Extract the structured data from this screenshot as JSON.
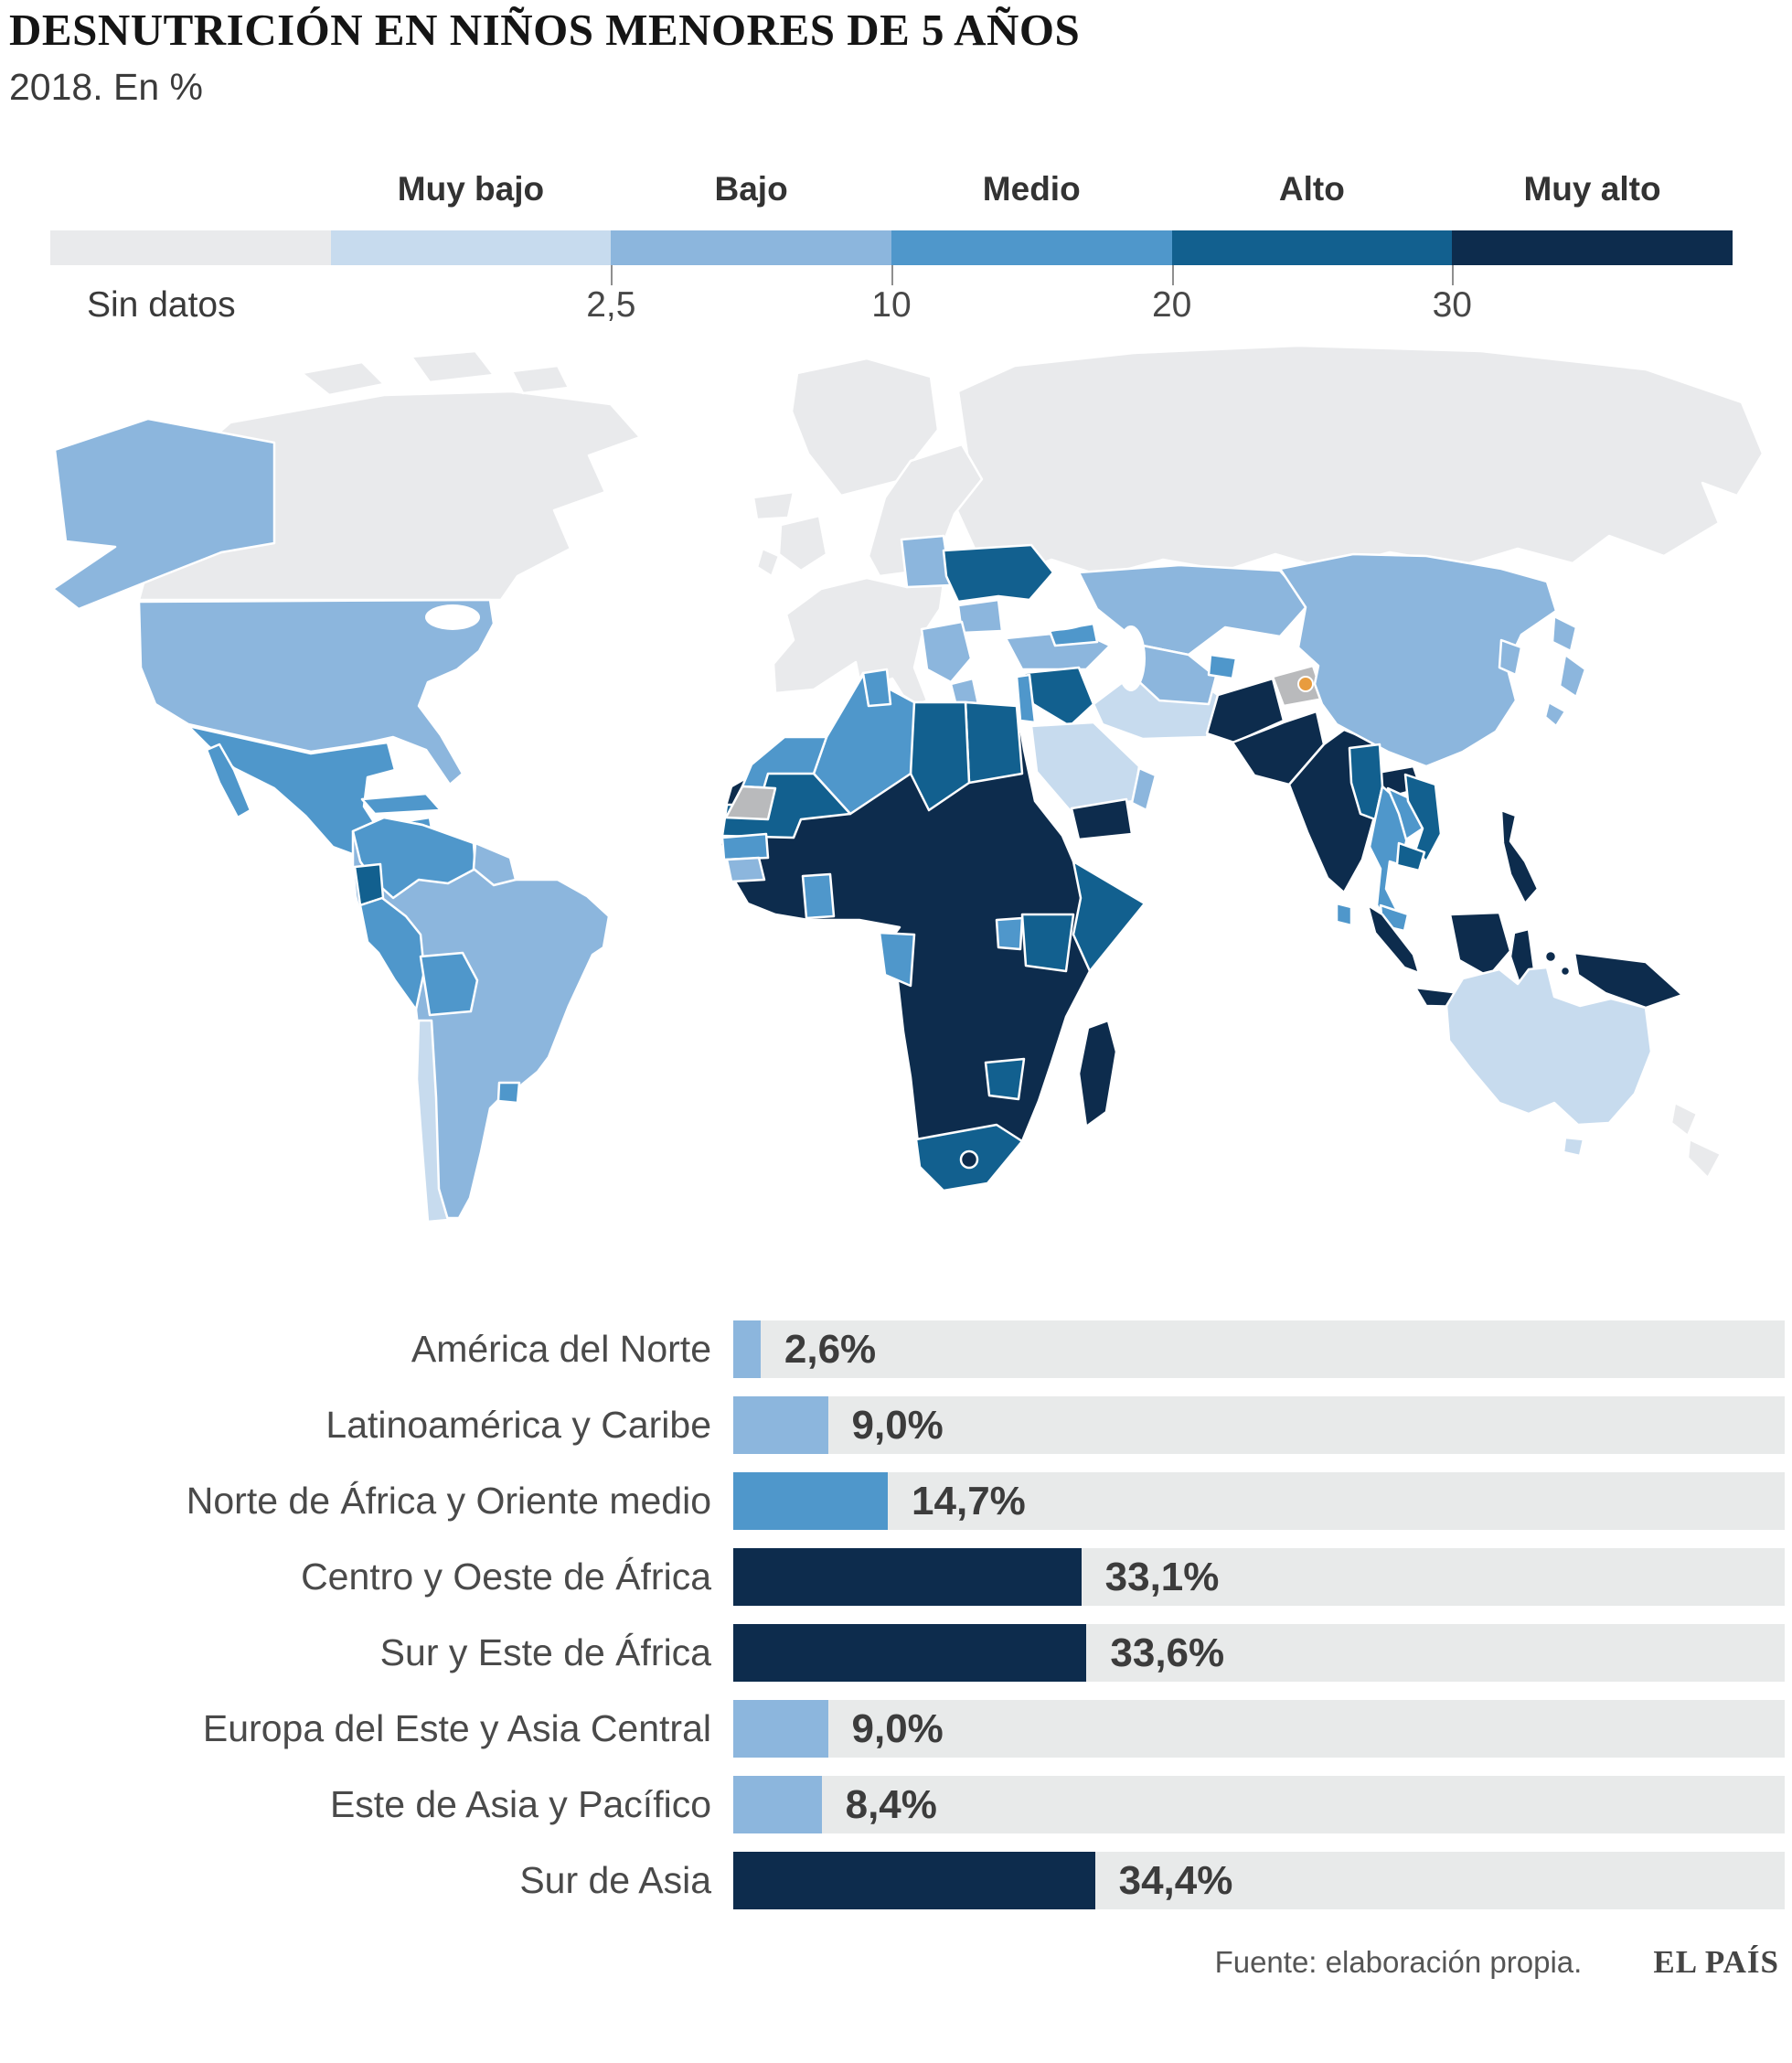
{
  "header": {
    "title": "DESNUTRICIÓN EN NIÑOS MENORES DE 5 AÑOS",
    "subtitle": "2018. En %"
  },
  "palette": {
    "sin_datos": "#e9eaec",
    "muy_bajo": "#c7dbee",
    "bajo": "#8cb6dd",
    "medio": "#4f97cb",
    "alto": "#12608f",
    "muy_alto": "#0d2c4d",
    "disputed": "#b9babc",
    "marker": "#e89c3e",
    "bar_track": "#e8eaea",
    "ocean": "#ffffff"
  },
  "legend": {
    "no_data_label": "Sin datos",
    "segment_order": [
      "sin_datos",
      "muy_bajo",
      "bajo",
      "medio",
      "alto",
      "muy_alto"
    ],
    "category_labels": [
      "Muy bajo",
      "Bajo",
      "Medio",
      "Alto",
      "Muy alto"
    ],
    "thresholds": [
      "2,5",
      "10",
      "20",
      "30"
    ]
  },
  "chart_data": {
    "type": "bar",
    "orientation": "horizontal",
    "unit": "%",
    "categories": [
      "América del Norte",
      "Latinoamérica y Caribe",
      "Norte de África y Oriente medio",
      "Centro y Oeste de África",
      "Sur y Este de África",
      "Europa del Este y Asia Central",
      "Este de Asia y Pacífico",
      "Sur de Asia"
    ],
    "values": [
      2.6,
      9.0,
      14.7,
      33.1,
      33.6,
      9.0,
      8.4,
      34.4
    ],
    "value_labels": [
      "2,6%",
      "9,0%",
      "14,7%",
      "33,1%",
      "33,6%",
      "9,0%",
      "8,4%",
      "34,4%"
    ],
    "bar_color_keys": [
      "bajo",
      "bajo",
      "medio",
      "muy_alto",
      "muy_alto",
      "bajo",
      "bajo",
      "muy_alto"
    ],
    "xlim": [
      0,
      100
    ],
    "grid": false,
    "legend_position": "top"
  },
  "map": {
    "type": "choropleth-world",
    "regions": [
      {
        "id": "russia",
        "category": "sin_datos"
      },
      {
        "id": "canada",
        "category": "sin_datos"
      },
      {
        "id": "arctic1",
        "category": "sin_datos"
      },
      {
        "id": "arctic2",
        "category": "sin_datos"
      },
      {
        "id": "arctic3",
        "category": "sin_datos"
      },
      {
        "id": "greenland",
        "category": "sin_datos"
      },
      {
        "id": "iceland",
        "category": "sin_datos"
      },
      {
        "id": "uk",
        "category": "sin_datos"
      },
      {
        "id": "ireland",
        "category": "sin_datos"
      },
      {
        "id": "scandinavia",
        "category": "sin_datos"
      },
      {
        "id": "europe",
        "category": "sin_datos"
      },
      {
        "id": "nz1",
        "category": "sin_datos"
      },
      {
        "id": "nz2",
        "category": "sin_datos"
      },
      {
        "id": "wsahara",
        "category": "disputed"
      },
      {
        "id": "kashmir",
        "category": "disputed"
      },
      {
        "id": "alaska",
        "category": "bajo"
      },
      {
        "id": "usa",
        "category": "bajo"
      },
      {
        "id": "samerica",
        "category": "bajo"
      },
      {
        "id": "guyanas",
        "category": "bajo"
      },
      {
        "id": "guinea",
        "category": "bajo"
      },
      {
        "id": "baltics",
        "category": "bajo"
      },
      {
        "id": "balkans",
        "category": "bajo"
      },
      {
        "id": "greece",
        "category": "bajo"
      },
      {
        "id": "romania",
        "category": "bajo"
      },
      {
        "id": "turkey",
        "category": "bajo"
      },
      {
        "id": "kazakhstan",
        "category": "bajo"
      },
      {
        "id": "centralasia",
        "category": "bajo"
      },
      {
        "id": "china",
        "category": "bajo"
      },
      {
        "id": "nkorea",
        "category": "bajo"
      },
      {
        "id": "japan1",
        "category": "bajo"
      },
      {
        "id": "japan2",
        "category": "bajo"
      },
      {
        "id": "japan3",
        "category": "bajo"
      },
      {
        "id": "oman",
        "category": "bajo"
      },
      {
        "id": "chile",
        "category": "muy_bajo"
      },
      {
        "id": "saudi",
        "category": "muy_bajo"
      },
      {
        "id": "iran",
        "category": "muy_bajo"
      },
      {
        "id": "australia",
        "category": "muy_bajo"
      },
      {
        "id": "tasmania",
        "category": "muy_bajo"
      },
      {
        "id": "mexico",
        "category": "medio"
      },
      {
        "id": "baja",
        "category": "medio"
      },
      {
        "id": "centralamerica",
        "category": "medio"
      },
      {
        "id": "cuba",
        "category": "medio"
      },
      {
        "id": "hispaniola",
        "category": "medio"
      },
      {
        "id": "jamaica",
        "category": "medio"
      },
      {
        "id": "colombia_venezuela",
        "category": "medio"
      },
      {
        "id": "peru",
        "category": "medio"
      },
      {
        "id": "bolivia",
        "category": "medio"
      },
      {
        "id": "uruguay",
        "category": "medio"
      },
      {
        "id": "morocco",
        "category": "medio"
      },
      {
        "id": "algeria",
        "category": "medio"
      },
      {
        "id": "tunisia",
        "category": "medio"
      },
      {
        "id": "senegal",
        "category": "medio"
      },
      {
        "id": "ghana",
        "category": "medio"
      },
      {
        "id": "uganda",
        "category": "medio"
      },
      {
        "id": "gabon_congo",
        "category": "medio"
      },
      {
        "id": "caucasus",
        "category": "medio"
      },
      {
        "id": "levante",
        "category": "medio"
      },
      {
        "id": "tajikistan",
        "category": "medio"
      },
      {
        "id": "srilanka",
        "category": "medio"
      },
      {
        "id": "thailand",
        "category": "medio"
      },
      {
        "id": "laos",
        "category": "medio"
      },
      {
        "id": "malaysia",
        "category": "medio"
      },
      {
        "id": "honduras",
        "category": "alto"
      },
      {
        "id": "ecuador",
        "category": "alto"
      },
      {
        "id": "libya",
        "category": "alto"
      },
      {
        "id": "egypt",
        "category": "alto"
      },
      {
        "id": "mauritania",
        "category": "alto"
      },
      {
        "id": "somalia",
        "category": "alto"
      },
      {
        "id": "kenya",
        "category": "alto"
      },
      {
        "id": "sudafrica",
        "category": "alto"
      },
      {
        "id": "zimbabwe",
        "category": "alto"
      },
      {
        "id": "ucrania",
        "category": "alto"
      },
      {
        "id": "iraq_siria",
        "category": "alto"
      },
      {
        "id": "myanmar",
        "category": "alto"
      },
      {
        "id": "vietnam",
        "category": "alto"
      },
      {
        "id": "camboya",
        "category": "alto"
      },
      {
        "id": "africa",
        "category": "muy_alto"
      },
      {
        "id": "guatemala",
        "category": "muy_alto"
      },
      {
        "id": "madagascar",
        "category": "muy_alto"
      },
      {
        "id": "lesotho",
        "category": "muy_alto"
      },
      {
        "id": "yemen",
        "category": "muy_alto"
      },
      {
        "id": "afganistan",
        "category": "muy_alto"
      },
      {
        "id": "pakistan",
        "category": "muy_alto"
      },
      {
        "id": "india",
        "category": "muy_alto"
      },
      {
        "id": "sumatra",
        "category": "muy_alto"
      },
      {
        "id": "java",
        "category": "muy_alto"
      },
      {
        "id": "borneo",
        "category": "muy_alto"
      },
      {
        "id": "sulawesi",
        "category": "muy_alto"
      },
      {
        "id": "molucca1",
        "category": "muy_alto"
      },
      {
        "id": "molucca2",
        "category": "muy_alto"
      },
      {
        "id": "filipinas",
        "category": "muy_alto"
      },
      {
        "id": "png",
        "category": "muy_alto"
      },
      {
        "id": "caspian",
        "category": "ocean"
      },
      {
        "id": "blacksea",
        "category": "ocean"
      },
      {
        "id": "lakes",
        "category": "ocean"
      }
    ]
  },
  "footer": {
    "source": "Fuente: elaboración propia.",
    "brand": "EL PAÍS"
  }
}
